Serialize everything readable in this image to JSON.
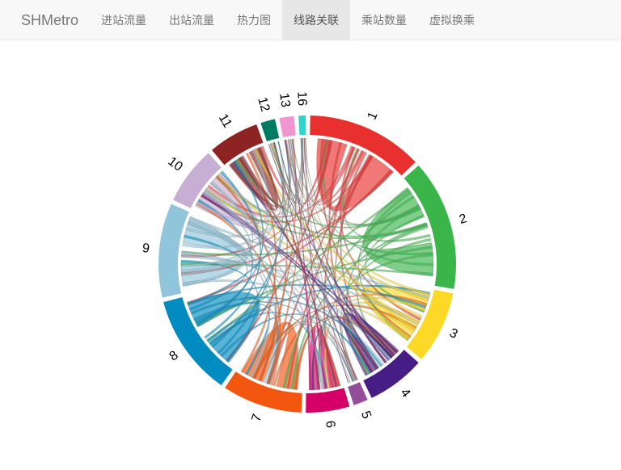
{
  "navbar": {
    "brand": "SHMetro",
    "items": [
      {
        "label": "进站流量",
        "active": false
      },
      {
        "label": "出站流量",
        "active": false
      },
      {
        "label": "热力图",
        "active": false
      },
      {
        "label": "线路关联",
        "active": true
      },
      {
        "label": "乘站数量",
        "active": false
      },
      {
        "label": "虚拟换乘",
        "active": false
      }
    ]
  },
  "chart_data": {
    "type": "chord",
    "groups": [
      {
        "label": "1",
        "color": "#e8312e",
        "size": 16
      },
      {
        "label": "2",
        "color": "#39b54a",
        "size": 18
      },
      {
        "label": "3",
        "color": "#fcd927",
        "size": 10
      },
      {
        "label": "4",
        "color": "#461d84",
        "size": 8
      },
      {
        "label": "5",
        "color": "#944d9a",
        "size": 2
      },
      {
        "label": "6",
        "color": "#d40068",
        "size": 6
      },
      {
        "label": "7",
        "color": "#f3560f",
        "size": 11
      },
      {
        "label": "8",
        "color": "#008cc1",
        "size": 14
      },
      {
        "label": "9",
        "color": "#91c5db",
        "size": 13
      },
      {
        "label": "10",
        "color": "#c7afd3",
        "size": 8
      },
      {
        "label": "11",
        "color": "#8e2323",
        "size": 7
      },
      {
        "label": "12",
        "color": "#007b63",
        "size": 2
      },
      {
        "label": "13",
        "color": "#ef95cf",
        "size": 2
      },
      {
        "label": "16",
        "color": "#32d4cb",
        "size": 1
      }
    ]
  }
}
